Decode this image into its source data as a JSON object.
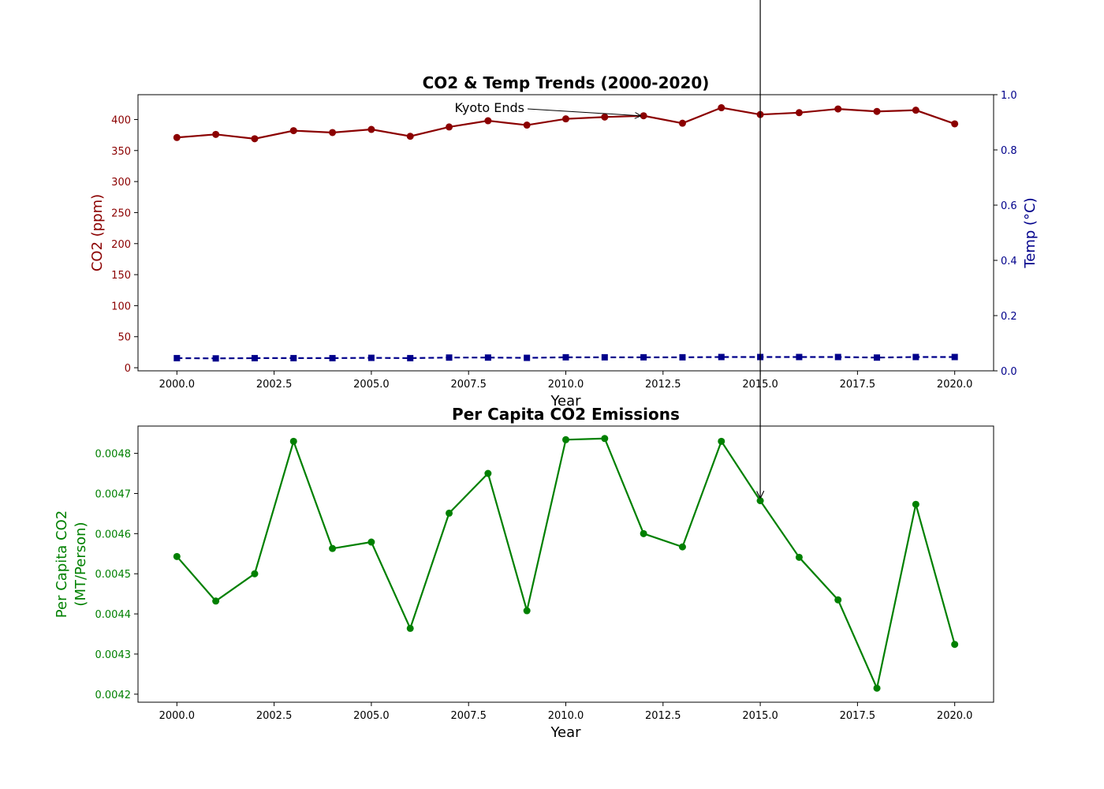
{
  "chart_data": [
    {
      "type": "line",
      "title": "CO2 & Temp Trends (2000-2020)",
      "xlabel": "Year",
      "ylabel": "CO2 (ppm)",
      "y2label": "Temp (°C)",
      "xlim": [
        1999,
        2021
      ],
      "ylim": [
        -5,
        440
      ],
      "y2lim": [
        0,
        1
      ],
      "x": [
        2000,
        2001,
        2002,
        2003,
        2004,
        2005,
        2006,
        2007,
        2008,
        2009,
        2010,
        2011,
        2012,
        2013,
        2014,
        2015,
        2016,
        2017,
        2018,
        2019,
        2020
      ],
      "xticks": [
        "2000.0",
        "2002.5",
        "2005.0",
        "2007.5",
        "2010.0",
        "2012.5",
        "2015.0",
        "2017.5",
        "2020.0"
      ],
      "yticks": [
        "0",
        "50",
        "100",
        "150",
        "200",
        "250",
        "300",
        "350",
        "400"
      ],
      "y2ticks": [
        "0.0",
        "0.2",
        "0.4",
        "0.6",
        "0.8",
        "1.0"
      ],
      "series": [
        {
          "axis": "left",
          "color": "#8b0000",
          "marker": "circle",
          "values": [
            371,
            376,
            369,
            382,
            379,
            384,
            373,
            388,
            398,
            391,
            401,
            404,
            406,
            394,
            419,
            408,
            411,
            417,
            413,
            415,
            393
          ]
        },
        {
          "axis": "right",
          "color": "#00008b",
          "marker": "square",
          "dashed": true,
          "values": [
            0.046,
            0.045,
            0.046,
            0.046,
            0.046,
            0.047,
            0.046,
            0.048,
            0.048,
            0.047,
            0.049,
            0.049,
            0.049,
            0.049,
            0.05,
            0.05,
            0.05,
            0.05,
            0.048,
            0.05,
            0.05
          ]
        }
      ],
      "annotations": [
        {
          "text": "Kyoto Ends",
          "x": 2012,
          "y": 406
        }
      ],
      "grid": false
    },
    {
      "type": "line",
      "title": "Per Capita CO2 Emissions",
      "xlabel": "Year",
      "ylabel": "Per Capita CO2\n(MT/Person)",
      "ylabel_lines": [
        "Per Capita CO2",
        "(MT/Person)"
      ],
      "xlim": [
        1999,
        2021
      ],
      "ylim": [
        0.00418,
        0.004868
      ],
      "x": [
        2000,
        2001,
        2002,
        2003,
        2004,
        2005,
        2006,
        2007,
        2008,
        2009,
        2010,
        2011,
        2012,
        2013,
        2014,
        2015,
        2016,
        2017,
        2018,
        2019,
        2020
      ],
      "xticks": [
        "2000.0",
        "2002.5",
        "2005.0",
        "2007.5",
        "2010.0",
        "2012.5",
        "2015.0",
        "2017.5",
        "2020.0"
      ],
      "yticks": [
        "0.0042",
        "0.0043",
        "0.0044",
        "0.0045",
        "0.0046",
        "0.0047",
        "0.0048"
      ],
      "series": [
        {
          "color": "#008000",
          "marker": "circle",
          "values": [
            0.004543,
            0.004432,
            0.0045,
            0.00483,
            0.004563,
            0.004579,
            0.004364,
            0.004651,
            0.00475,
            0.004408,
            0.004834,
            0.004837,
            0.0046,
            0.004567,
            0.00483,
            0.004682,
            0.004541,
            0.004435,
            0.004215,
            0.004673,
            0.004324
          ]
        }
      ],
      "annotations": [
        {
          "x": 2015,
          "y": 0.004682,
          "arrow_from": "top"
        }
      ],
      "grid": false
    }
  ]
}
